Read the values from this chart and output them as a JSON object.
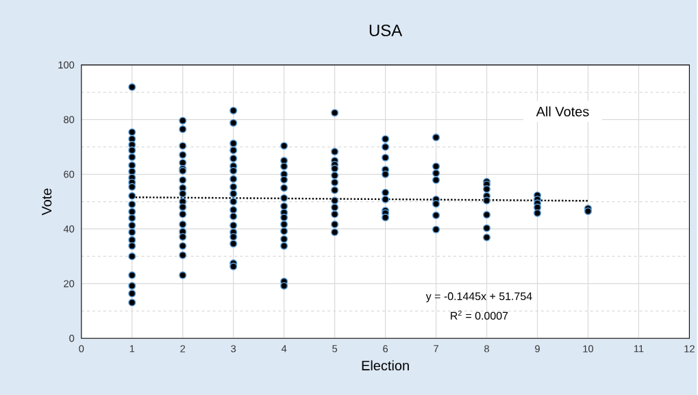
{
  "chart_data": {
    "type": "scatter",
    "title": "USA",
    "xlabel": "Election",
    "ylabel": "Vote",
    "xlim": [
      0,
      12
    ],
    "xticks": [
      0,
      1,
      2,
      3,
      4,
      5,
      6,
      7,
      8,
      9,
      10,
      11,
      12
    ],
    "ylim": [
      0,
      100
    ],
    "yticks": [
      0,
      20,
      40,
      60,
      80,
      100
    ],
    "grid": true,
    "marker": "circle",
    "annotations": [
      "All Votes",
      "y = -0.1445x + 51.754",
      "R$^{2}$ = 0.0007"
    ],
    "series": [
      {
        "color": "#5b9bd5",
        "x": [
          1,
          1,
          1,
          1,
          1,
          1,
          1,
          1,
          1,
          1,
          1,
          1,
          1,
          1,
          1,
          1,
          1,
          1,
          1,
          1,
          1,
          1,
          1,
          1,
          2,
          2,
          2,
          2,
          2,
          2,
          2,
          2,
          2,
          2,
          2,
          2,
          2,
          2,
          2,
          2,
          2,
          2,
          2,
          3,
          3,
          3,
          3,
          3,
          3,
          3,
          3,
          3,
          3,
          3,
          3,
          3,
          3,
          3,
          3,
          3,
          3,
          3,
          4,
          4,
          4,
          4,
          4,
          4,
          4,
          4,
          4,
          4,
          4,
          4,
          4,
          4,
          4,
          4,
          5,
          5,
          5,
          5,
          5,
          5,
          5,
          5,
          5,
          5,
          5,
          5,
          5,
          6,
          6,
          6,
          6,
          6,
          6,
          6,
          6,
          6,
          6,
          7,
          7,
          7,
          7,
          7,
          7,
          7,
          7,
          8,
          8,
          8,
          8,
          8,
          8,
          8,
          8,
          9,
          9,
          9,
          9,
          9,
          10,
          10
        ],
        "values": [
          91.9,
          75.4,
          72.9,
          70.8,
          68.8,
          66.3,
          63.3,
          61,
          58.8,
          57,
          55.4,
          52.1,
          49,
          46.3,
          44,
          41.3,
          38.8,
          36,
          33.8,
          30,
          23.1,
          19.2,
          16.4,
          13.1,
          79.6,
          76.5,
          70.4,
          67.1,
          64.2,
          62,
          61.3,
          57.9,
          55,
          52.9,
          50,
          48,
          45.4,
          41.7,
          39,
          37.1,
          33.8,
          30.4,
          23.1,
          83.3,
          78.8,
          71.3,
          68.8,
          65.8,
          63,
          61.3,
          58.3,
          55.4,
          52.9,
          50,
          47,
          44.6,
          41.3,
          38.8,
          37.1,
          34.6,
          27.5,
          26.3,
          70.4,
          65,
          62.9,
          60,
          58,
          55,
          51.3,
          48.3,
          46,
          44.2,
          41.7,
          39.2,
          36.3,
          33.8,
          20.8,
          19.2,
          82.5,
          68.3,
          65,
          63.5,
          62.1,
          59.6,
          57,
          54.2,
          50.4,
          47.9,
          45.4,
          41.7,
          38.8,
          72.9,
          70,
          66.1,
          61.7,
          60,
          53.3,
          50.8,
          46.7,
          45.8,
          44.2,
          73.5,
          62.9,
          60.4,
          57.9,
          50.8,
          49.2,
          45,
          39.8,
          57.3,
          56.3,
          54.6,
          52.1,
          50.4,
          45.2,
          40.3,
          36.9,
          52.3,
          50.8,
          49.4,
          47.9,
          45.8,
          47.5,
          46.5
        ]
      },
      {
        "type": "line",
        "color": "#000000",
        "line_style": "dotted",
        "marker": "none",
        "x": [
          1,
          10
        ],
        "values": [
          51.6,
          50.3
        ]
      }
    ]
  }
}
